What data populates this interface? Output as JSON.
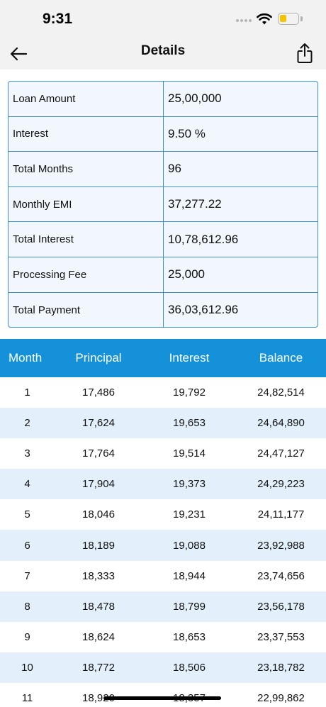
{
  "status_bar": {
    "time": "9:31"
  },
  "nav": {
    "title": "Details"
  },
  "summary": [
    {
      "label": "Loan Amount",
      "value": "25,00,000"
    },
    {
      "label": "Interest",
      "value": "9.50 %"
    },
    {
      "label": "Total Months",
      "value": "96"
    },
    {
      "label": "Monthly EMI",
      "value": "37,277.22"
    },
    {
      "label": "Total Interest",
      "value": "10,78,612.96"
    },
    {
      "label": "Processing Fee",
      "value": "25,000"
    },
    {
      "label": "Total Payment",
      "value": "36,03,612.96"
    }
  ],
  "schedule": {
    "headers": {
      "month": "Month",
      "principal": "Principal",
      "interest": "Interest",
      "balance": "Balance"
    },
    "rows": [
      {
        "month": "1",
        "principal": "17,486",
        "interest": "19,792",
        "balance": "24,82,514"
      },
      {
        "month": "2",
        "principal": "17,624",
        "interest": "19,653",
        "balance": "24,64,890"
      },
      {
        "month": "3",
        "principal": "17,764",
        "interest": "19,514",
        "balance": "24,47,127"
      },
      {
        "month": "4",
        "principal": "17,904",
        "interest": "19,373",
        "balance": "24,29,223"
      },
      {
        "month": "5",
        "principal": "18,046",
        "interest": "19,231",
        "balance": "24,11,177"
      },
      {
        "month": "6",
        "principal": "18,189",
        "interest": "19,088",
        "balance": "23,92,988"
      },
      {
        "month": "7",
        "principal": "18,333",
        "interest": "18,944",
        "balance": "23,74,656"
      },
      {
        "month": "8",
        "principal": "18,478",
        "interest": "18,799",
        "balance": "23,56,178"
      },
      {
        "month": "9",
        "principal": "18,624",
        "interest": "18,653",
        "balance": "23,37,553"
      },
      {
        "month": "10",
        "principal": "18,772",
        "interest": "18,506",
        "balance": "23,18,782"
      },
      {
        "month": "11",
        "principal": "18,920",
        "interest": "18,357",
        "balance": "22,99,862"
      }
    ]
  },
  "colors": {
    "accent": "#1591d9",
    "border": "#3d8fd6",
    "row_alt": "#e3f0fb",
    "summary_bg": "#f1f7fd"
  },
  "icons": {
    "back": "arrow-left-icon",
    "share": "share-icon",
    "wifi": "wifi-icon",
    "battery": "battery-icon"
  }
}
